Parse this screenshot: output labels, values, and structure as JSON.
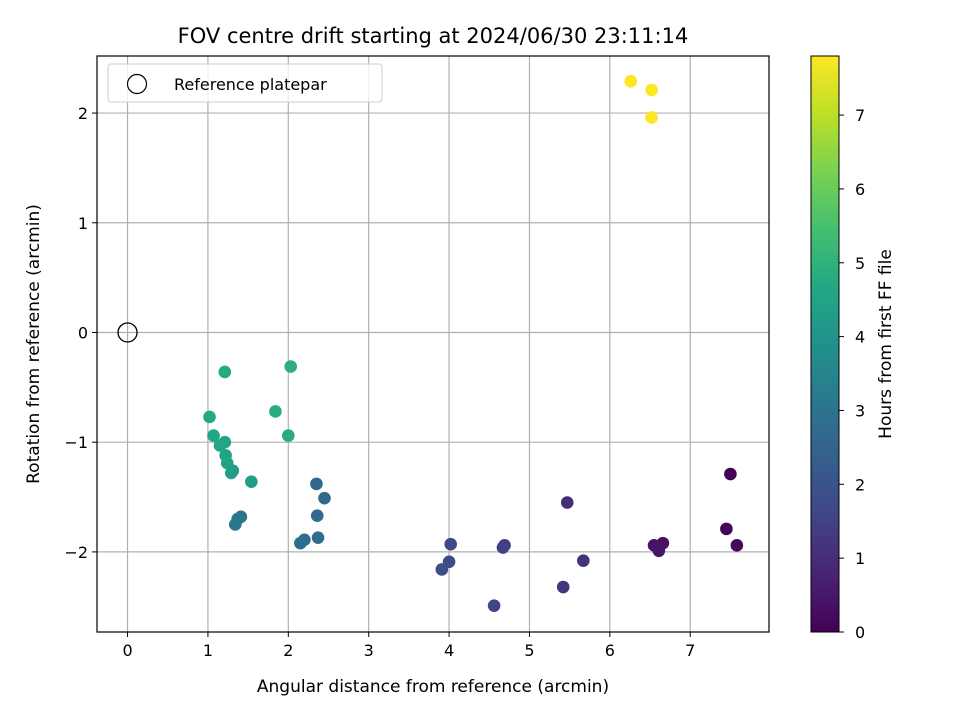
{
  "chart_data": {
    "type": "scatter",
    "title": "FOV centre drift starting at 2024/06/30 23:11:14",
    "xlabel": "Angular distance from reference (arcmin)",
    "ylabel": "Rotation from reference (arcmin)",
    "xlim": [
      -0.38,
      7.98
    ],
    "ylim": [
      -2.73,
      2.52
    ],
    "xticks": [
      0,
      1,
      2,
      3,
      4,
      5,
      6,
      7
    ],
    "yticks": [
      -2,
      -1,
      0,
      1,
      2
    ],
    "grid": true,
    "legend": {
      "placement": "top-left",
      "entries": [
        "Reference platepar"
      ]
    },
    "reference_point": {
      "x": 0,
      "y": 0,
      "name": "Reference platepar"
    },
    "colorbar": {
      "label": "Hours from first FF file",
      "range": [
        0,
        7.8
      ],
      "ticks": [
        0,
        1,
        2,
        3,
        4,
        5,
        6,
        7
      ],
      "colormap": "viridis"
    },
    "points": [
      {
        "x": 7.5,
        "y": -1.29,
        "c": 0.05
      },
      {
        "x": 7.45,
        "y": -1.79,
        "c": 0.1
      },
      {
        "x": 7.58,
        "y": -1.94,
        "c": 0.15
      },
      {
        "x": 6.66,
        "y": -1.92,
        "c": 0.35
      },
      {
        "x": 6.55,
        "y": -1.94,
        "c": 0.4
      },
      {
        "x": 6.61,
        "y": -1.99,
        "c": 0.45
      },
      {
        "x": 5.47,
        "y": -1.55,
        "c": 1.0
      },
      {
        "x": 5.67,
        "y": -2.08,
        "c": 1.1
      },
      {
        "x": 5.42,
        "y": -2.32,
        "c": 1.2
      },
      {
        "x": 4.69,
        "y": -1.94,
        "c": 1.4
      },
      {
        "x": 4.67,
        "y": -1.96,
        "c": 1.45
      },
      {
        "x": 4.56,
        "y": -2.49,
        "c": 1.55
      },
      {
        "x": 4.02,
        "y": -1.93,
        "c": 1.7
      },
      {
        "x": 4.0,
        "y": -2.09,
        "c": 1.8
      },
      {
        "x": 3.91,
        "y": -2.16,
        "c": 1.85
      },
      {
        "x": 2.35,
        "y": -1.38,
        "c": 2.6
      },
      {
        "x": 2.45,
        "y": -1.51,
        "c": 2.65
      },
      {
        "x": 2.36,
        "y": -1.67,
        "c": 2.7
      },
      {
        "x": 2.37,
        "y": -1.87,
        "c": 2.75
      },
      {
        "x": 2.2,
        "y": -1.89,
        "c": 2.8
      },
      {
        "x": 2.15,
        "y": -1.92,
        "c": 2.85
      },
      {
        "x": 1.41,
        "y": -1.68,
        "c": 3.0
      },
      {
        "x": 1.37,
        "y": -1.7,
        "c": 3.05
      },
      {
        "x": 1.34,
        "y": -1.75,
        "c": 3.1
      },
      {
        "x": 1.54,
        "y": -1.36,
        "c": 4.3
      },
      {
        "x": 1.31,
        "y": -1.26,
        "c": 4.35
      },
      {
        "x": 1.29,
        "y": -1.28,
        "c": 4.4
      },
      {
        "x": 1.24,
        "y": -1.19,
        "c": 4.45
      },
      {
        "x": 1.22,
        "y": -1.12,
        "c": 4.5
      },
      {
        "x": 1.21,
        "y": -1.0,
        "c": 4.55
      },
      {
        "x": 1.15,
        "y": -1.03,
        "c": 4.6
      },
      {
        "x": 1.07,
        "y": -0.94,
        "c": 4.65
      },
      {
        "x": 1.02,
        "y": -0.77,
        "c": 4.7
      },
      {
        "x": 1.21,
        "y": -0.36,
        "c": 4.75
      },
      {
        "x": 1.84,
        "y": -0.72,
        "c": 4.8
      },
      {
        "x": 2.0,
        "y": -0.94,
        "c": 4.85
      },
      {
        "x": 2.03,
        "y": -0.31,
        "c": 4.9
      },
      {
        "x": 6.26,
        "y": 2.29,
        "c": 7.8
      },
      {
        "x": 6.52,
        "y": 2.21,
        "c": 7.8
      },
      {
        "x": 6.52,
        "y": 1.96,
        "c": 7.8
      }
    ]
  }
}
